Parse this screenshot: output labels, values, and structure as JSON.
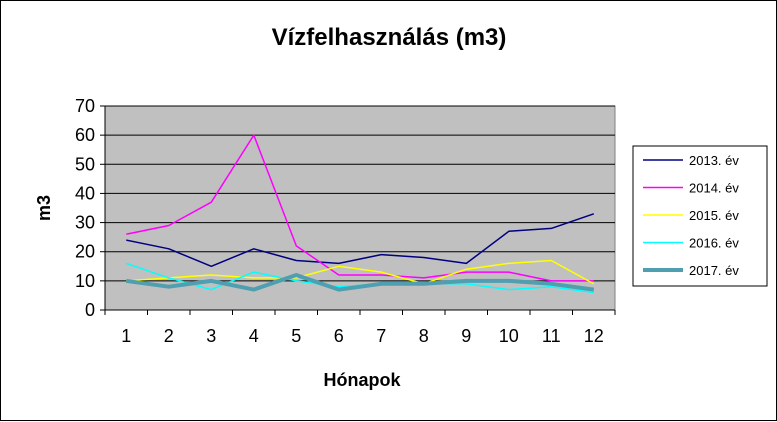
{
  "chart_data": {
    "type": "line",
    "title": "Vízfelhasználás (m3)",
    "xlabel": "Hónapok",
    "ylabel": "m3",
    "categories": [
      "1",
      "2",
      "3",
      "4",
      "5",
      "6",
      "7",
      "8",
      "9",
      "10",
      "11",
      "12"
    ],
    "ylim": [
      0,
      70
    ],
    "yticks": [
      0,
      10,
      20,
      30,
      40,
      50,
      60,
      70
    ],
    "grid": true,
    "plot_background": "#c0c0c0",
    "legend_position": "right",
    "series": [
      {
        "name": "2013. év",
        "color": "#000080",
        "width": "normal",
        "values": [
          24,
          21,
          15,
          21,
          17,
          16,
          19,
          18,
          16,
          27,
          28,
          33
        ]
      },
      {
        "name": "2014. év",
        "color": "#ff00ff",
        "width": "normal",
        "values": [
          26,
          29,
          37,
          60,
          22,
          12,
          12,
          11,
          13,
          13,
          10,
          10
        ]
      },
      {
        "name": "2015. év",
        "color": "#ffff00",
        "width": "normal",
        "values": [
          10,
          11,
          12,
          11,
          11,
          15,
          13,
          9,
          14,
          16,
          17,
          9
        ]
      },
      {
        "name": "2016. év",
        "color": "#00ffff",
        "width": "normal",
        "values": [
          16,
          11,
          7,
          13,
          10,
          8,
          9,
          9,
          9,
          7,
          8,
          6
        ]
      },
      {
        "name": "2017. év",
        "color": "#4f9fb0",
        "width": "thick",
        "values": [
          10,
          8,
          10,
          7,
          12,
          7,
          9,
          9,
          10,
          10,
          9,
          7
        ]
      }
    ]
  }
}
